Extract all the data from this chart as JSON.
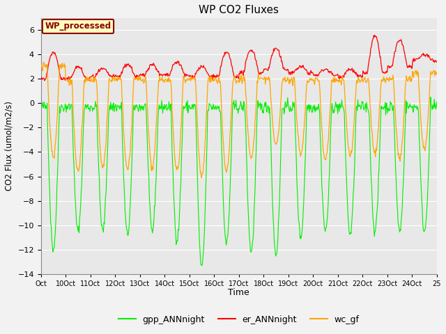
{
  "title": "WP CO2 Fluxes",
  "xlabel": "Time",
  "ylabel": "CO2 Flux (umol/m2/s)",
  "ylim": [
    -14,
    7
  ],
  "yticks": [
    -14,
    -12,
    -10,
    -8,
    -6,
    -4,
    -2,
    0,
    2,
    4,
    6
  ],
  "xtick_labels": [
    "Oct",
    "10Oct",
    "11Oct",
    "12Oct",
    "13Oct",
    "14Oct",
    "15Oct",
    "16Oct",
    "17Oct",
    "18Oct",
    "19Oct",
    "20Oct",
    "21Oct",
    "22Oct",
    "23Oct",
    "24Oct",
    "25"
  ],
  "colors": {
    "gpp": "#00EE00",
    "er": "#FF0000",
    "wc": "#FFA500",
    "fig_bg": "#F2F2F2",
    "plot_bg": "#E8E8E8",
    "grid": "#FFFFFF"
  },
  "legend_labels": [
    "gpp_ANNnight",
    "er_ANNnight",
    "wc_gf"
  ],
  "annotation_text": "WP_processed",
  "annotation_bbox_facecolor": "#FFFFC0",
  "annotation_bbox_edgecolor": "#8B0000",
  "annotation_text_color": "#8B0000",
  "n_days": 16,
  "pts_per_day": 48
}
